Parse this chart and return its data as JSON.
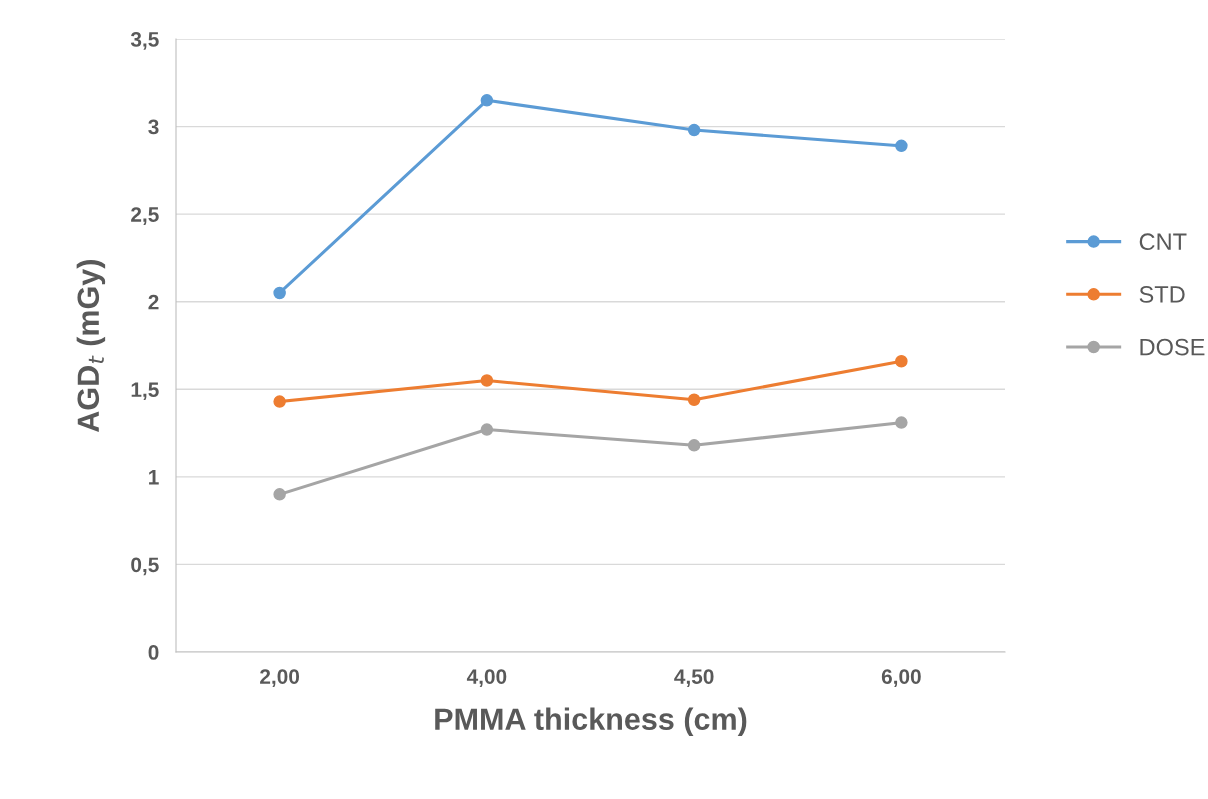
{
  "chart_data": {
    "type": "line",
    "xlabel": "PMMA thickness (cm)",
    "ylabel": "AGD$_{t}$ (mGy)",
    "categories": [
      "2,00",
      "4,00",
      "4,50",
      "6,00"
    ],
    "series": [
      {
        "name": "CNT",
        "color": "#5b9bd5",
        "values": [
          2.05,
          3.15,
          2.98,
          2.89
        ]
      },
      {
        "name": "STD",
        "color": "#ed7d31",
        "values": [
          1.43,
          1.55,
          1.44,
          1.66
        ]
      },
      {
        "name": "DOSE",
        "color": "#a5a5a5",
        "values": [
          0.9,
          1.27,
          1.18,
          1.31
        ]
      }
    ],
    "ylim": [
      0,
      3.5
    ],
    "yticks": [
      0,
      {
        "value": 0.5,
        "label": "0,5"
      },
      1,
      {
        "value": 1.5,
        "label": "1,5"
      },
      2,
      {
        "value": 2.5,
        "label": "2,5"
      },
      3,
      {
        "value": 3.5,
        "label": "3,5"
      }
    ],
    "grid": "y",
    "legend": "right",
    "marker": "circle",
    "line_style": "solid"
  }
}
